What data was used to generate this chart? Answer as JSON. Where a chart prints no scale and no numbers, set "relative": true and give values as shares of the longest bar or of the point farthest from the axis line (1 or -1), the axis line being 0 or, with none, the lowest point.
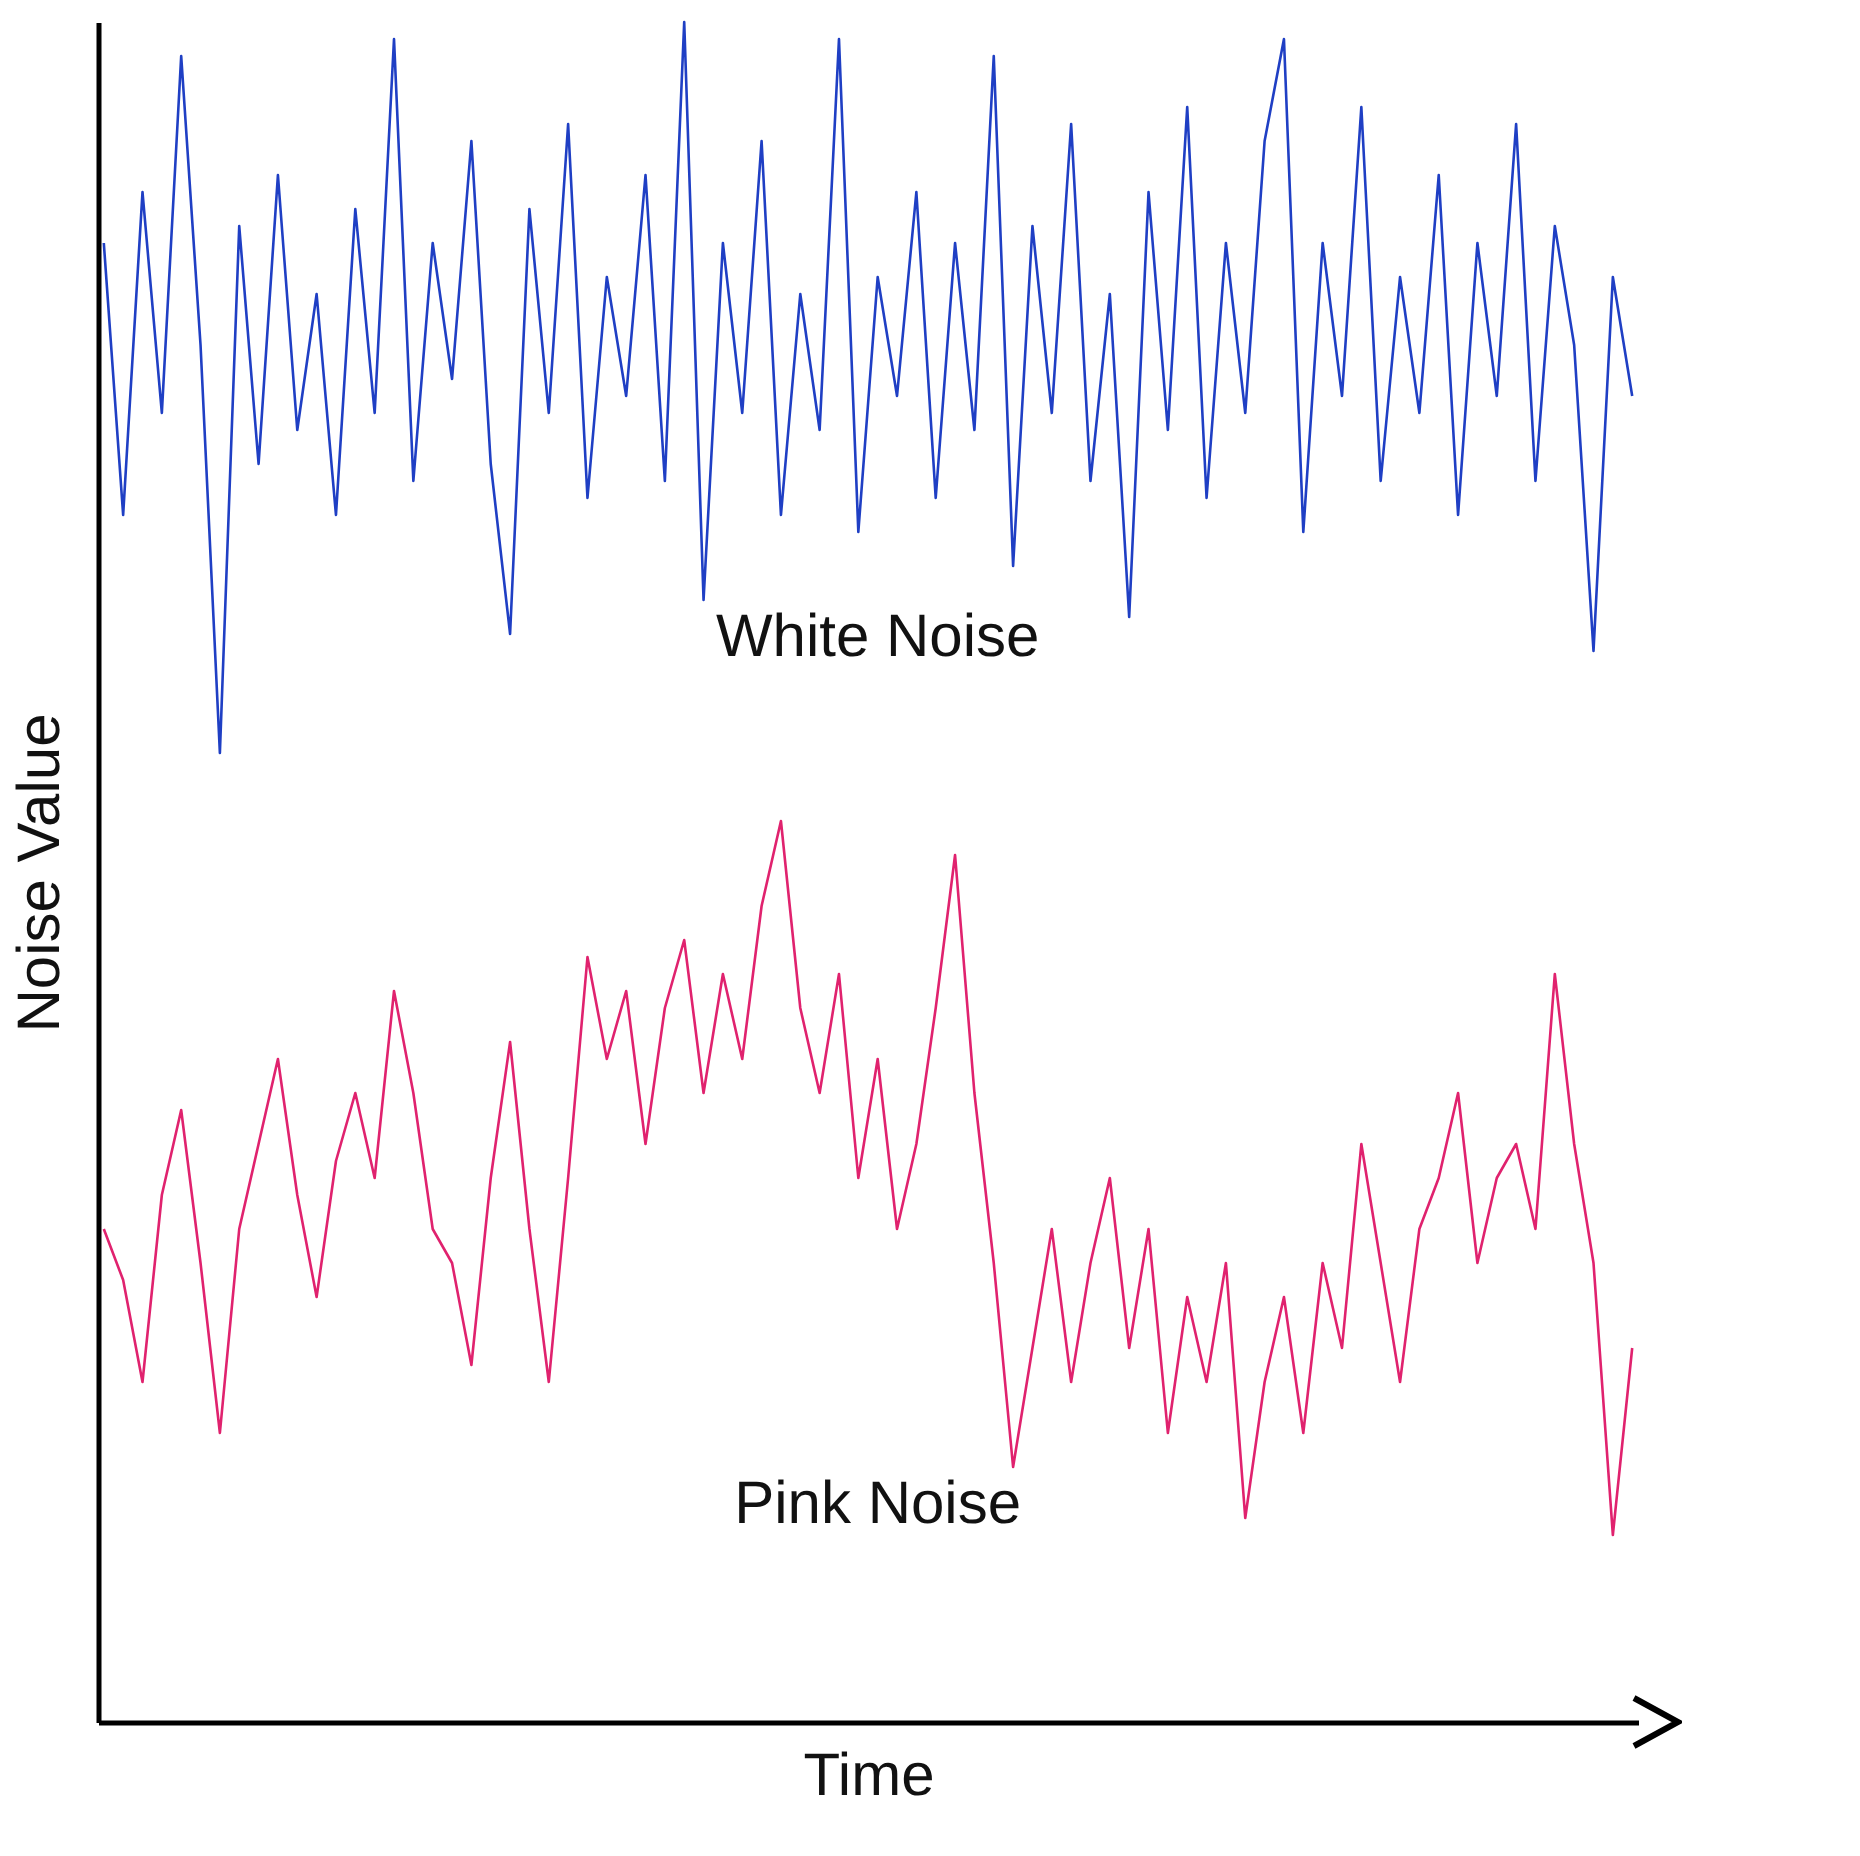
{
  "chart_data": {
    "type": "line",
    "relative": true,
    "xlabel": "Time",
    "ylabel": "Noise Value",
    "legend": false,
    "grid": false,
    "marker": "none",
    "categories": [
      null,
      null,
      null,
      null,
      null,
      null,
      null,
      null,
      null,
      null,
      null,
      null,
      null,
      null,
      null,
      null,
      null,
      null,
      null,
      null,
      null,
      null,
      null,
      null,
      null,
      null,
      null,
      null,
      null,
      null,
      null,
      null,
      null,
      null,
      null,
      null,
      null,
      null,
      null,
      null,
      null,
      null,
      null,
      null,
      null,
      null,
      null,
      null,
      null,
      null,
      null,
      null,
      null,
      null,
      null,
      null,
      null,
      null,
      null,
      null,
      null,
      null,
      null,
      null,
      null,
      null,
      null,
      null,
      null,
      null,
      null,
      null,
      null,
      null,
      null,
      null,
      null,
      null,
      null,
      null
    ],
    "series": [
      {
        "name": "White Noise",
        "color": "#1f3fc4",
        "values": [
          0.87,
          0.71,
          0.9,
          0.77,
          0.98,
          0.81,
          0.57,
          0.88,
          0.74,
          0.91,
          0.76,
          0.84,
          0.71,
          0.89,
          0.77,
          0.99,
          0.73,
          0.87,
          0.79,
          0.93,
          0.74,
          0.64,
          0.89,
          0.77,
          0.94,
          0.72,
          0.85,
          0.78,
          0.91,
          0.73,
          1.0,
          0.66,
          0.87,
          0.77,
          0.93,
          0.71,
          0.84,
          0.76,
          0.99,
          0.7,
          0.85,
          0.78,
          0.9,
          0.72,
          0.87,
          0.76,
          0.98,
          0.68,
          0.88,
          0.77,
          0.94,
          0.73,
          0.84,
          0.65,
          0.9,
          0.76,
          0.95,
          0.72,
          0.87,
          0.77,
          0.93,
          0.99,
          0.7,
          0.87,
          0.78,
          0.95,
          0.73,
          0.85,
          0.77,
          0.91,
          0.71,
          0.87,
          0.78,
          0.94,
          0.73,
          0.88,
          0.81,
          0.63,
          0.85,
          0.78
        ]
      },
      {
        "name": "Pink Noise",
        "color": "#e0226e",
        "values": [
          0.29,
          0.26,
          0.2,
          0.31,
          0.36,
          0.27,
          0.17,
          0.29,
          0.34,
          0.39,
          0.31,
          0.25,
          0.33,
          0.37,
          0.32,
          0.43,
          0.37,
          0.29,
          0.27,
          0.21,
          0.32,
          0.4,
          0.29,
          0.2,
          0.32,
          0.45,
          0.39,
          0.43,
          0.34,
          0.42,
          0.46,
          0.37,
          0.44,
          0.39,
          0.48,
          0.53,
          0.42,
          0.37,
          0.44,
          0.32,
          0.39,
          0.29,
          0.34,
          0.42,
          0.51,
          0.37,
          0.27,
          0.15,
          0.22,
          0.29,
          0.2,
          0.27,
          0.32,
          0.22,
          0.29,
          0.17,
          0.25,
          0.2,
          0.27,
          0.12,
          0.2,
          0.25,
          0.17,
          0.27,
          0.22,
          0.34,
          0.27,
          0.2,
          0.29,
          0.32,
          0.37,
          0.27,
          0.32,
          0.34,
          0.29,
          0.44,
          0.34,
          0.27,
          0.11,
          0.22
        ]
      }
    ]
  }
}
